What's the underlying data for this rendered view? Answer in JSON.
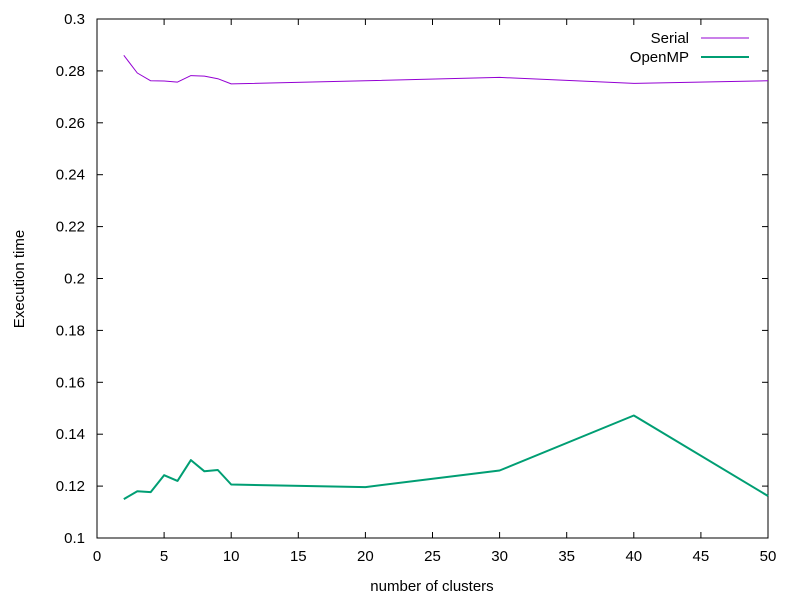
{
  "chart_data": {
    "type": "line",
    "title": "",
    "xlabel": "number of clusters",
    "ylabel": "Execution time",
    "xlim": [
      0,
      50
    ],
    "ylim": [
      0.1,
      0.3
    ],
    "xticks": [
      "0",
      "5",
      "10",
      "15",
      "20",
      "25",
      "30",
      "35",
      "40",
      "45",
      "50"
    ],
    "yticks": [
      "0.1",
      "0.12",
      "0.14",
      "0.16",
      "0.18",
      "0.2",
      "0.22",
      "0.24",
      "0.26",
      "0.28",
      "0.3"
    ],
    "grid": false,
    "legend_position": "top-right",
    "series": [
      {
        "name": "Serial",
        "color": "#9400d3",
        "x": [
          2,
          3,
          4,
          5,
          6,
          7,
          8,
          9,
          10,
          20,
          30,
          40,
          50
        ],
        "y": [
          0.286,
          0.2792,
          0.2762,
          0.2761,
          0.2757,
          0.2782,
          0.278,
          0.277,
          0.275,
          0.2762,
          0.2775,
          0.2752,
          0.2762
        ]
      },
      {
        "name": "OpenMP",
        "color": "#009e73",
        "x": [
          2,
          3,
          4,
          5,
          6,
          7,
          8,
          9,
          10,
          20,
          30,
          40,
          50
        ],
        "y": [
          0.115,
          0.118,
          0.1177,
          0.1242,
          0.122,
          0.13,
          0.1257,
          0.1262,
          0.1206,
          0.1196,
          0.126,
          0.1472,
          0.1162
        ]
      }
    ]
  }
}
